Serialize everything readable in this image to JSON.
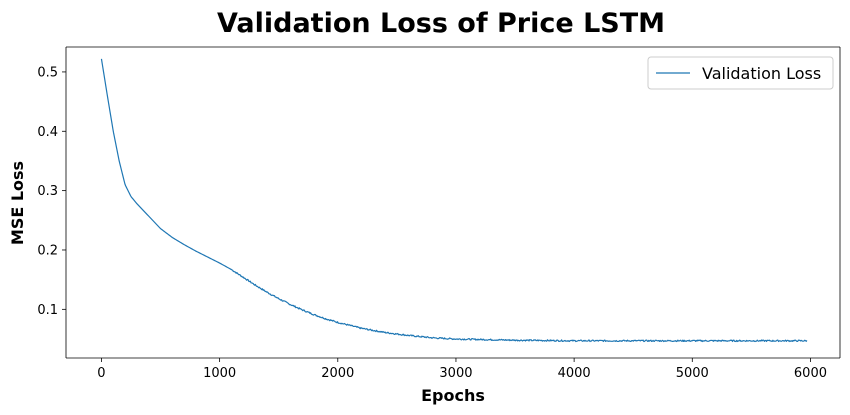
{
  "chart_data": {
    "type": "line",
    "title": "Validation Loss of Price LSTM",
    "xlabel": "Epochs",
    "ylabel": "MSE Loss",
    "xlim": [
      -300,
      6250
    ],
    "ylim": [
      0.018,
      0.542
    ],
    "xticks": [
      0,
      1000,
      2000,
      3000,
      4000,
      5000,
      6000
    ],
    "yticks": [
      0.1,
      0.2,
      0.3,
      0.4,
      0.5
    ],
    "xtick_labels": [
      "0",
      "1000",
      "2000",
      "3000",
      "4000",
      "5000",
      "6000"
    ],
    "ytick_labels": [
      "0.1",
      "0.2",
      "0.3",
      "0.4",
      "0.5"
    ],
    "grid": false,
    "legend_position": "top-right",
    "series": [
      {
        "name": "Validation Loss",
        "color": "#1f77b4",
        "x": [
          0,
          50,
          100,
          150,
          200,
          250,
          300,
          400,
          500,
          600,
          700,
          800,
          900,
          1000,
          1100,
          1200,
          1300,
          1400,
          1500,
          1600,
          1700,
          1800,
          1900,
          2000,
          2200,
          2400,
          2600,
          2800,
          3000,
          3500,
          4000,
          4500,
          5000,
          5500,
          5970
        ],
        "values": [
          0.522,
          0.46,
          0.4,
          0.35,
          0.31,
          0.29,
          0.278,
          0.257,
          0.236,
          0.221,
          0.209,
          0.198,
          0.188,
          0.178,
          0.167,
          0.154,
          0.141,
          0.129,
          0.118,
          0.108,
          0.099,
          0.091,
          0.084,
          0.078,
          0.068,
          0.061,
          0.056,
          0.052,
          0.05,
          0.048,
          0.047,
          0.047,
          0.047,
          0.047,
          0.047
        ]
      }
    ]
  }
}
